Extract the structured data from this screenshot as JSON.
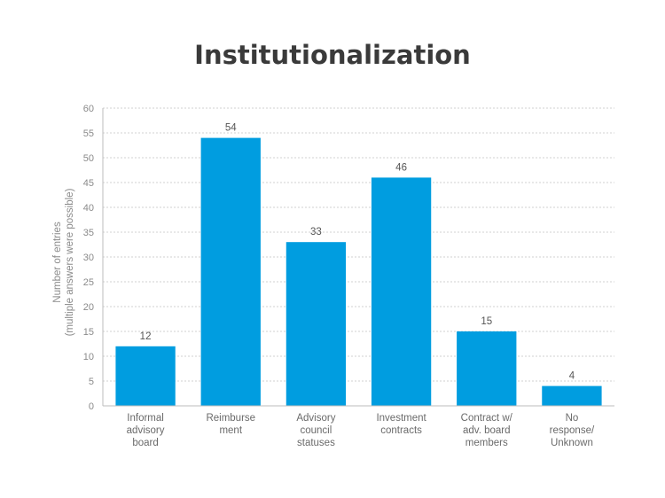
{
  "chart_data": {
    "type": "bar",
    "title": "Institutionalization",
    "ylabel_lines": [
      "Number of entries",
      "(multiple answers were possible)"
    ],
    "xlabel": "",
    "ylim": [
      0,
      60
    ],
    "yticks": [
      0,
      5,
      10,
      15,
      20,
      25,
      30,
      35,
      40,
      45,
      50,
      55,
      60
    ],
    "grid": true,
    "categories": [
      [
        "Informal",
        "advisory",
        "board"
      ],
      [
        "Reimburse",
        "ment"
      ],
      [
        "Advisory",
        "council",
        "statuses"
      ],
      [
        "Investment",
        "contracts"
      ],
      [
        "Contract w/",
        "adv. board",
        "members"
      ],
      [
        "No",
        "response/",
        "Unknown"
      ]
    ],
    "values": [
      12,
      54,
      33,
      46,
      15,
      4
    ],
    "bar_color": "#009de0"
  }
}
